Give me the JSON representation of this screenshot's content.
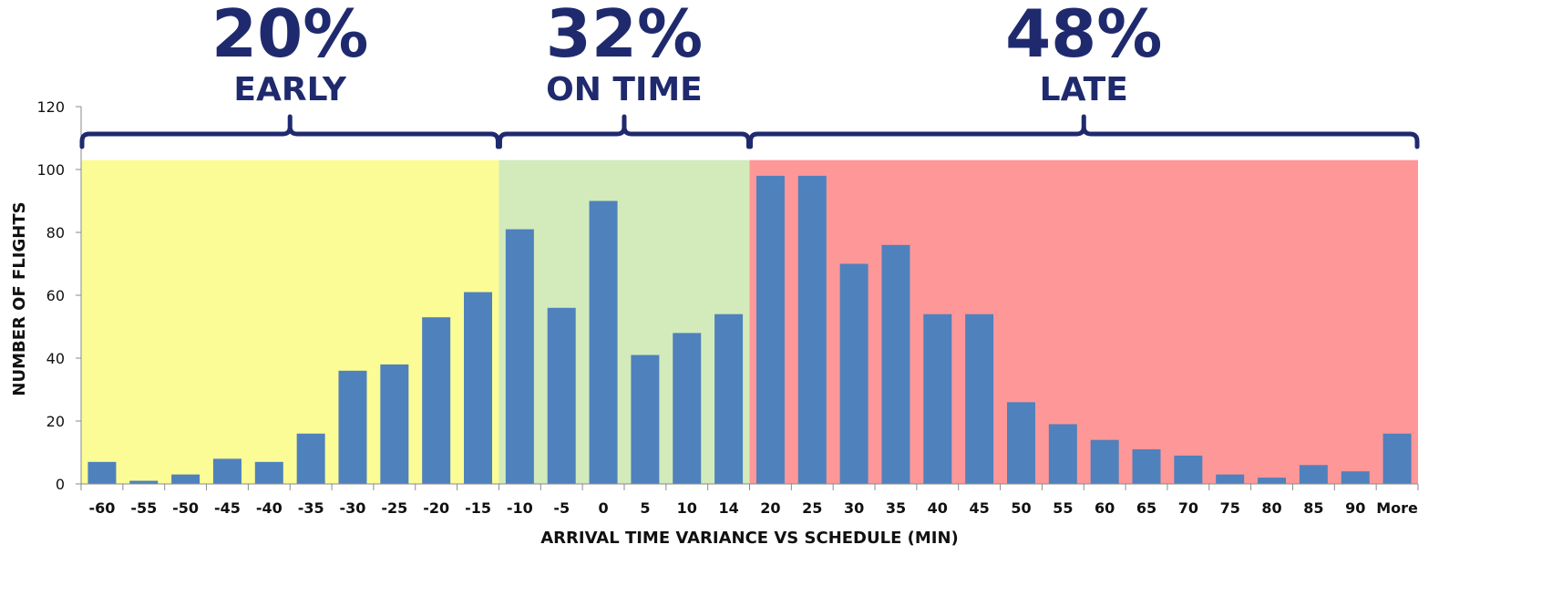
{
  "chart_data": {
    "type": "bar",
    "categories": [
      "-60",
      "-55",
      "-50",
      "-45",
      "-40",
      "-35",
      "-30",
      "-25",
      "-20",
      "-15",
      "-10",
      "-5",
      "0",
      "5",
      "10",
      "14",
      "20",
      "25",
      "30",
      "35",
      "40",
      "45",
      "50",
      "55",
      "60",
      "65",
      "70",
      "75",
      "80",
      "85",
      "90",
      "More"
    ],
    "values": [
      7,
      1,
      3,
      8,
      7,
      16,
      36,
      38,
      53,
      61,
      81,
      56,
      90,
      41,
      48,
      54,
      98,
      98,
      70,
      76,
      54,
      54,
      26,
      19,
      14,
      11,
      9,
      3,
      2,
      6,
      4,
      16
    ],
    "xlabel": "ARRIVAL TIME VARIANCE VS SCHEDULE (MIN)",
    "ylabel": "NUMBER OF FLIGHTS",
    "ylim": [
      0,
      120
    ],
    "yticks": [
      "0",
      "20",
      "40",
      "60",
      "80",
      "100",
      "120"
    ],
    "zones": [
      {
        "percent": "20%",
        "label": "EARLY",
        "first_index": 0,
        "last_index": 9,
        "color": "#fcfc96"
      },
      {
        "percent": "32%",
        "label": "ON TIME",
        "first_index": 10,
        "last_index": 15,
        "color": "#d3ebbb"
      },
      {
        "percent": "48%",
        "label": "LATE",
        "first_index": 16,
        "last_index": 31,
        "color": "#fe9898"
      }
    ],
    "zone_top_value": 103,
    "bar_color": "#4f81bd",
    "annotation_color": "#1f2a6e",
    "grid": false
  }
}
